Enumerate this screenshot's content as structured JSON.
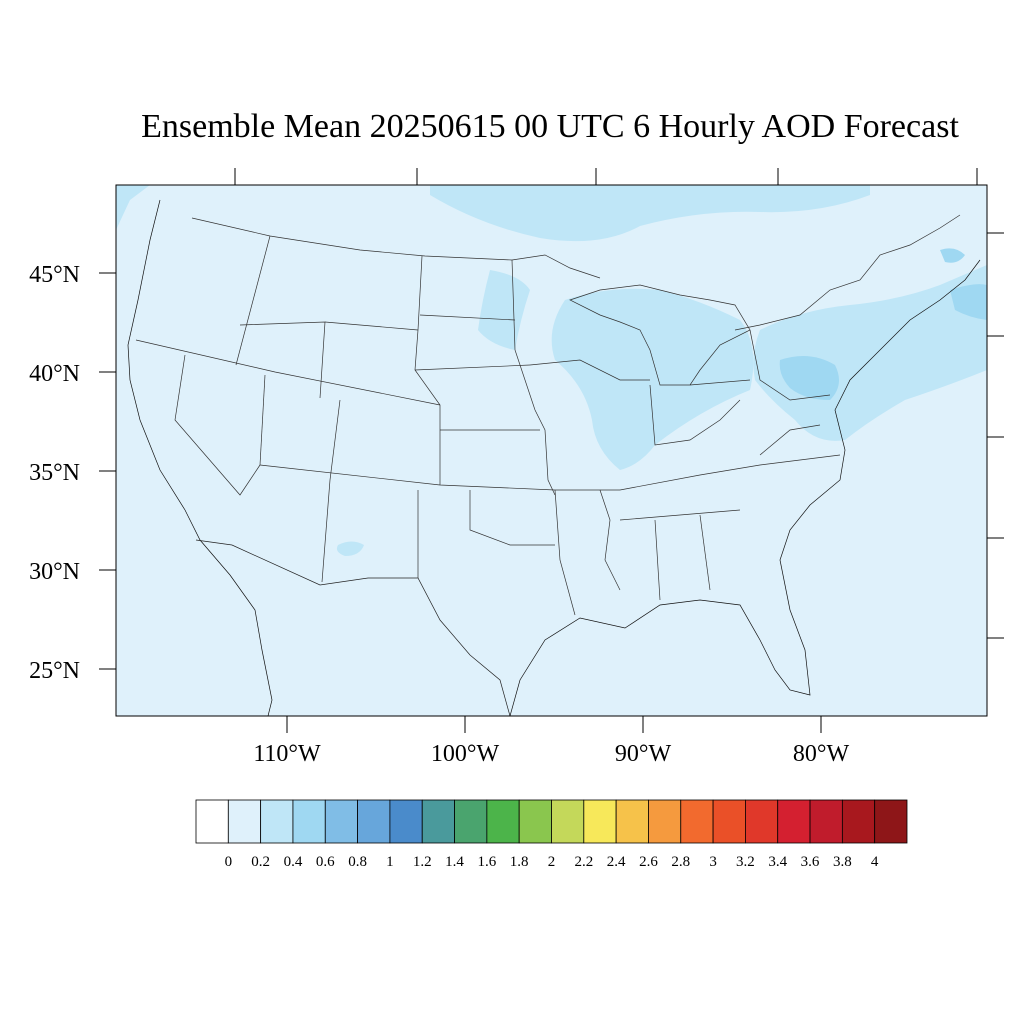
{
  "title": "Ensemble Mean 20250615 00 UTC 6 Hourly AOD Forecast",
  "map": {
    "region": "Continental United States",
    "variable": "AOD",
    "background_value_color": "#dff1fb",
    "lat_labels": [
      "45°N",
      "40°N",
      "35°N",
      "30°N",
      "25°N"
    ],
    "lon_labels": [
      "110°W",
      "100°W",
      "90°W",
      "80°W"
    ]
  },
  "colorbar": {
    "labels": [
      "0",
      "0.2",
      "0.4",
      "0.6",
      "0.8",
      "1",
      "1.2",
      "1.4",
      "1.6",
      "1.8",
      "2",
      "2.2",
      "2.4",
      "2.6",
      "2.8",
      "3",
      "3.2",
      "3.4",
      "3.6",
      "3.8",
      "4"
    ],
    "colors": [
      "#ffffff",
      "#dff1fb",
      "#bfe6f7",
      "#9fd8f2",
      "#80bde6",
      "#67a6db",
      "#4a8bcb",
      "#4a9a9c",
      "#4aa46e",
      "#4cb44a",
      "#8ac64e",
      "#c4d85a",
      "#f7e85a",
      "#f6c24a",
      "#f59a3e",
      "#f26a2e",
      "#ea5028",
      "#e0382a",
      "#d42030",
      "#c01c2c",
      "#a8181e",
      "#8e1618"
    ]
  }
}
